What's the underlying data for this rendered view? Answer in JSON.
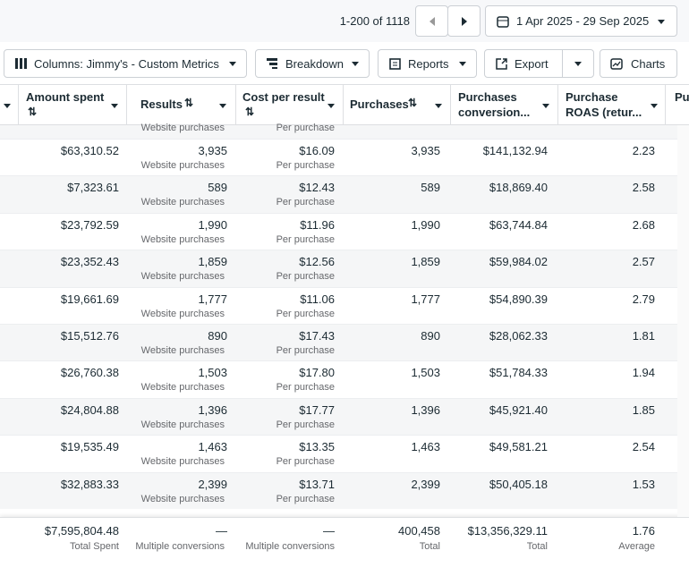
{
  "pagination": {
    "range": "1-200 of 1118"
  },
  "date_range": "1 Apr 2025 - 29 Sep 2025",
  "toolbar": {
    "columns": "Columns: Jimmy's - Custom Metrics",
    "breakdown": "Breakdown",
    "reports": "Reports",
    "export": "Export",
    "charts": "Charts"
  },
  "headers": {
    "amount": "Amount spent",
    "results": "Results",
    "cost": "Cost per result",
    "purchases": "Purchases",
    "conversion_1": "Purchases",
    "conversion_2": "conversion...",
    "roas_1": "Purchase",
    "roas_2": "ROAS (retur...",
    "partial": "Pu"
  },
  "partial_row": {
    "results_sub": "Website purchases",
    "cost_sub": "Per purchase"
  },
  "rows": [
    {
      "amount": "$63,310.52",
      "results": "3,935",
      "results_sub": "Website purchases",
      "cost": "$16.09",
      "cost_sub": "Per purchase",
      "purchases": "3,935",
      "conversion_value": "$141,132.94",
      "roas": "2.23"
    },
    {
      "amount": "$7,323.61",
      "results": "589",
      "results_sub": "Website purchases",
      "cost": "$12.43",
      "cost_sub": "Per purchase",
      "purchases": "589",
      "conversion_value": "$18,869.40",
      "roas": "2.58"
    },
    {
      "amount": "$23,792.59",
      "results": "1,990",
      "results_sub": "Website purchases",
      "cost": "$11.96",
      "cost_sub": "Per purchase",
      "purchases": "1,990",
      "conversion_value": "$63,744.84",
      "roas": "2.68"
    },
    {
      "amount": "$23,352.43",
      "results": "1,859",
      "results_sub": "Website purchases",
      "cost": "$12.56",
      "cost_sub": "Per purchase",
      "purchases": "1,859",
      "conversion_value": "$59,984.02",
      "roas": "2.57"
    },
    {
      "amount": "$19,661.69",
      "results": "1,777",
      "results_sub": "Website purchases",
      "cost": "$11.06",
      "cost_sub": "Per purchase",
      "purchases": "1,777",
      "conversion_value": "$54,890.39",
      "roas": "2.79"
    },
    {
      "amount": "$15,512.76",
      "results": "890",
      "results_sub": "Website purchases",
      "cost": "$17.43",
      "cost_sub": "Per purchase",
      "purchases": "890",
      "conversion_value": "$28,062.33",
      "roas": "1.81"
    },
    {
      "amount": "$26,760.38",
      "results": "1,503",
      "results_sub": "Website purchases",
      "cost": "$17.80",
      "cost_sub": "Per purchase",
      "purchases": "1,503",
      "conversion_value": "$51,784.33",
      "roas": "1.94"
    },
    {
      "amount": "$24,804.88",
      "results": "1,396",
      "results_sub": "Website purchases",
      "cost": "$17.77",
      "cost_sub": "Per purchase",
      "purchases": "1,396",
      "conversion_value": "$45,921.40",
      "roas": "1.85"
    },
    {
      "amount": "$19,535.49",
      "results": "1,463",
      "results_sub": "Website purchases",
      "cost": "$13.35",
      "cost_sub": "Per purchase",
      "purchases": "1,463",
      "conversion_value": "$49,581.21",
      "roas": "2.54"
    },
    {
      "amount": "$32,883.33",
      "results": "2,399",
      "results_sub": "Website purchases",
      "cost": "$13.71",
      "cost_sub": "Per purchase",
      "purchases": "2,399",
      "conversion_value": "$50,405.18",
      "roas": "1.53"
    }
  ],
  "totals": {
    "amount": "$7,595,804.48",
    "amount_sub": "Total Spent",
    "results": "—",
    "results_sub": "Multiple conversions",
    "cost": "—",
    "cost_sub": "Multiple conversions",
    "purchases": "400,458",
    "purchases_sub": "Total",
    "conversion_value": "$13,356,329.11",
    "conversion_sub": "Total",
    "roas": "1.76",
    "roas_sub": "Average"
  }
}
